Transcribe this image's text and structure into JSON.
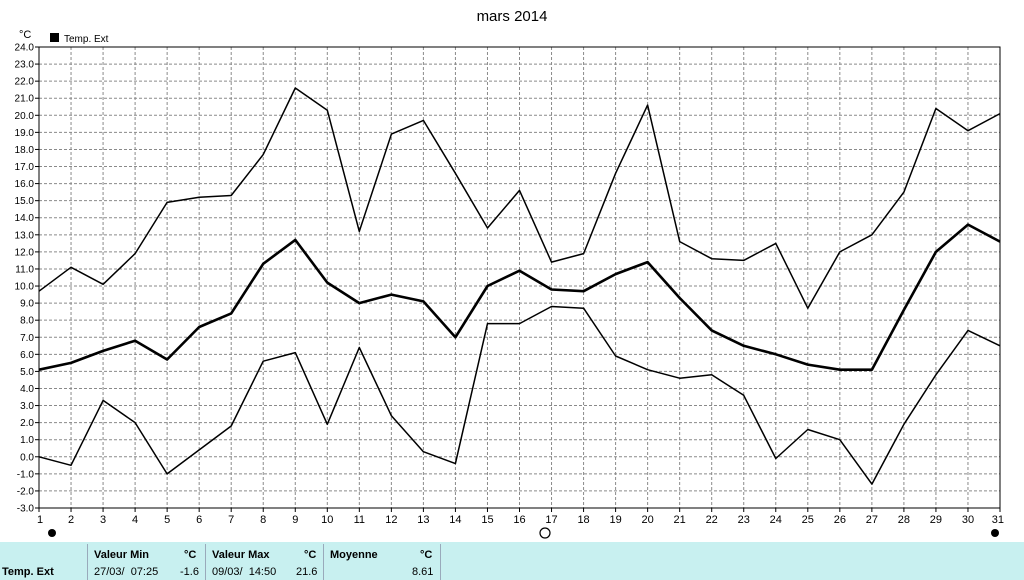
{
  "chart_data": {
    "type": "line",
    "title": "mars 2014",
    "ylabel": "°C",
    "legend": {
      "label": "Temp. Ext",
      "placement": "top-left"
    },
    "grid": true,
    "ylim": [
      -3,
      24
    ],
    "y_ticks": [
      "24.0",
      "23.0",
      "22.0",
      "21.0",
      "20.0",
      "19.0",
      "18.0",
      "17.0",
      "16.0",
      "15.0",
      "14.0",
      "13.0",
      "12.0",
      "11.0",
      "10.0",
      "9.0",
      "8.0",
      "7.0",
      "6.0",
      "5.0",
      "4.0",
      "3.0",
      "2.0",
      "1.0",
      "0.0",
      "-1.0",
      "-2.0",
      "-3.0"
    ],
    "x": [
      1,
      2,
      3,
      4,
      5,
      6,
      7,
      8,
      9,
      10,
      11,
      12,
      13,
      14,
      15,
      16,
      17,
      18,
      19,
      20,
      21,
      22,
      23,
      24,
      25,
      26,
      27,
      28,
      29,
      30,
      31
    ],
    "x_ticks": [
      "1",
      "2",
      "3",
      "4",
      "5",
      "6",
      "7",
      "8",
      "9",
      "10",
      "11",
      "12",
      "13",
      "14",
      "15",
      "16",
      "17",
      "18",
      "19",
      "20",
      "21",
      "22",
      "23",
      "24",
      "25",
      "26",
      "27",
      "28",
      "29",
      "30",
      "31"
    ],
    "series": [
      {
        "role": "max",
        "values": [
          9.7,
          11.1,
          10.1,
          11.9,
          14.9,
          15.2,
          15.3,
          17.7,
          21.6,
          20.3,
          13.2,
          18.9,
          19.7,
          16.6,
          13.4,
          15.6,
          11.4,
          11.9,
          16.6,
          20.6,
          12.6,
          11.6,
          11.5,
          12.5,
          8.7,
          12.0,
          13.0,
          15.5,
          20.4,
          19.1,
          20.1
        ]
      },
      {
        "role": "mean",
        "values": [
          5.1,
          5.5,
          6.2,
          6.8,
          5.7,
          7.6,
          8.4,
          11.3,
          12.7,
          10.2,
          9.0,
          9.5,
          9.1,
          7.0,
          10.0,
          10.9,
          9.8,
          9.7,
          10.7,
          11.4,
          9.3,
          7.4,
          6.5,
          6.0,
          5.4,
          5.1,
          5.1,
          8.6,
          12.0,
          13.6,
          12.6
        ]
      },
      {
        "role": "min",
        "values": [
          0.0,
          -0.5,
          3.3,
          2.0,
          -1.0,
          0.4,
          1.8,
          5.6,
          6.1,
          1.9,
          6.4,
          2.4,
          0.3,
          -0.4,
          7.8,
          7.8,
          8.8,
          8.7,
          5.9,
          5.1,
          4.6,
          4.8,
          3.6,
          -0.1,
          1.6,
          1.0,
          -1.6,
          1.9,
          4.8,
          7.4,
          6.5
        ]
      }
    ]
  },
  "stats": {
    "row_label": "Temp. Ext",
    "min_header": "Valeur Min",
    "min_unit": "°C",
    "min_date": "27/03/  07:25",
    "min_value": "-1.6",
    "max_header": "Valeur Max",
    "max_unit": "°C",
    "max_date": "09/03/  14:50",
    "max_value": "21.6",
    "mean_header": "Moyenne",
    "mean_unit": "°C",
    "mean_value": "8.61"
  }
}
